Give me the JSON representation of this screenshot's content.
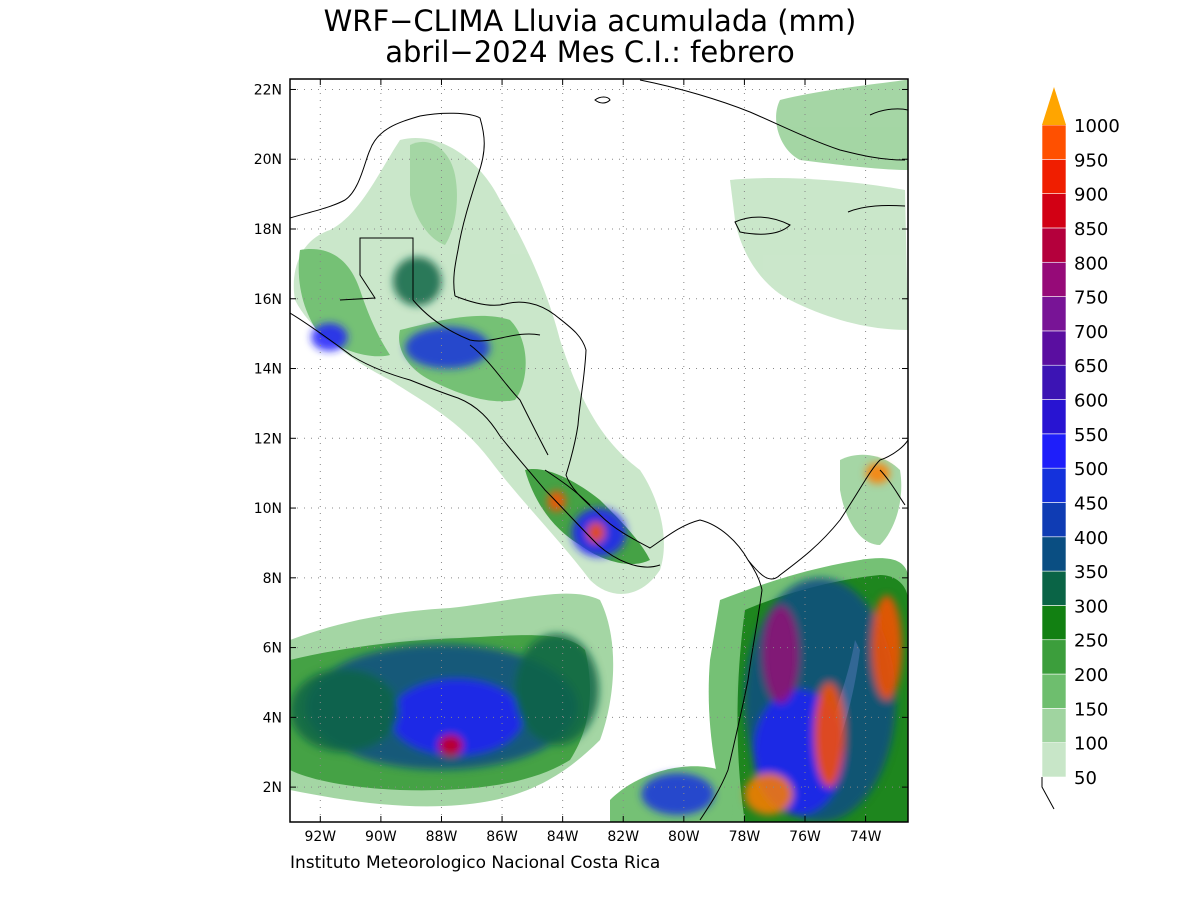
{
  "title": {
    "line1": "WRF−CLIMA Lluvia acumulada (mm)",
    "line2": "abril−2024 Mes C.I.: febrero"
  },
  "credit": "Instituto Meteorologico Nacional Costa Rica",
  "map": {
    "lon_range": [
      -93.0,
      -72.6
    ],
    "lat_range": [
      1.0,
      22.3
    ],
    "lat_ticks": [
      "2N",
      "4N",
      "6N",
      "8N",
      "10N",
      "12N",
      "14N",
      "16N",
      "18N",
      "20N",
      "22N"
    ],
    "lon_ticks": [
      "92W",
      "90W",
      "88W",
      "86W",
      "84W",
      "82W",
      "80W",
      "78W",
      "76W",
      "74W"
    ],
    "gridlines": true,
    "region": "Central America, Caribbean and northwestern South America"
  },
  "colorbar": {
    "levels": [
      "50",
      "100",
      "150",
      "200",
      "250",
      "300",
      "350",
      "400",
      "450",
      "500",
      "550",
      "600",
      "650",
      "700",
      "750",
      "800",
      "850",
      "900",
      "950",
      "1000"
    ],
    "colors": [
      "#c8e6c8",
      "#a0d4a0",
      "#6ebe6e",
      "#3c9e3c",
      "#128012",
      "#0a6446",
      "#0a4e82",
      "#0f3cb4",
      "#1432dc",
      "#1e1efa",
      "#2814d2",
      "#3c14b4",
      "#5a0ea0",
      "#781496",
      "#960a78",
      "#b4003c",
      "#d20014",
      "#f01e00",
      "#ff5000",
      "#ff7d00",
      "#ffa500"
    ],
    "unit": "mm"
  },
  "precip_blobs": [
    {
      "lon": -88.0,
      "lat": 4.3,
      "rx": 4.5,
      "ry": 1.8,
      "level": 6
    },
    {
      "lon": -87.5,
      "lat": 4.0,
      "rx": 2.2,
      "ry": 1.1,
      "level": 9
    },
    {
      "lon": -87.7,
      "lat": 3.2,
      "rx": 0.4,
      "ry": 0.3,
      "level": 16
    },
    {
      "lon": -91.2,
      "lat": 4.2,
      "rx": 1.8,
      "ry": 1.2,
      "level": 5
    },
    {
      "lon": -84.2,
      "lat": 4.8,
      "rx": 1.4,
      "ry": 1.6,
      "level": 5
    },
    {
      "lon": -75.5,
      "lat": 4.5,
      "rx": 2.5,
      "ry": 3.5,
      "level": 6
    },
    {
      "lon": -76.2,
      "lat": 3.0,
      "rx": 1.5,
      "ry": 1.8,
      "level": 9
    },
    {
      "lon": -76.8,
      "lat": 5.8,
      "rx": 0.6,
      "ry": 1.4,
      "level": 14
    },
    {
      "lon": -73.3,
      "lat": 6.0,
      "rx": 0.5,
      "ry": 1.5,
      "level": 18
    },
    {
      "lon": -75.2,
      "lat": 3.5,
      "rx": 0.5,
      "ry": 1.5,
      "level": 18
    },
    {
      "lon": -77.2,
      "lat": 1.8,
      "rx": 0.8,
      "ry": 0.6,
      "level": 19
    },
    {
      "lon": -82.8,
      "lat": 9.3,
      "rx": 0.9,
      "ry": 0.7,
      "level": 9
    },
    {
      "lon": -82.9,
      "lat": 9.3,
      "rx": 0.3,
      "ry": 0.3,
      "level": 18
    },
    {
      "lon": -84.2,
      "lat": 10.2,
      "rx": 0.3,
      "ry": 0.3,
      "level": 18
    },
    {
      "lon": -87.8,
      "lat": 14.6,
      "rx": 1.4,
      "ry": 0.6,
      "level": 8
    },
    {
      "lon": -91.7,
      "lat": 14.9,
      "rx": 0.6,
      "ry": 0.4,
      "level": 9
    },
    {
      "lon": -88.8,
      "lat": 16.5,
      "rx": 0.8,
      "ry": 0.7,
      "level": 5
    },
    {
      "lon": -73.6,
      "lat": 11.0,
      "rx": 0.4,
      "ry": 0.3,
      "level": 19
    },
    {
      "lon": -80.2,
      "lat": 1.8,
      "rx": 1.2,
      "ry": 0.6,
      "level": 8
    }
  ],
  "labels": {
    "colorbar": "colorbar-1000mm"
  }
}
